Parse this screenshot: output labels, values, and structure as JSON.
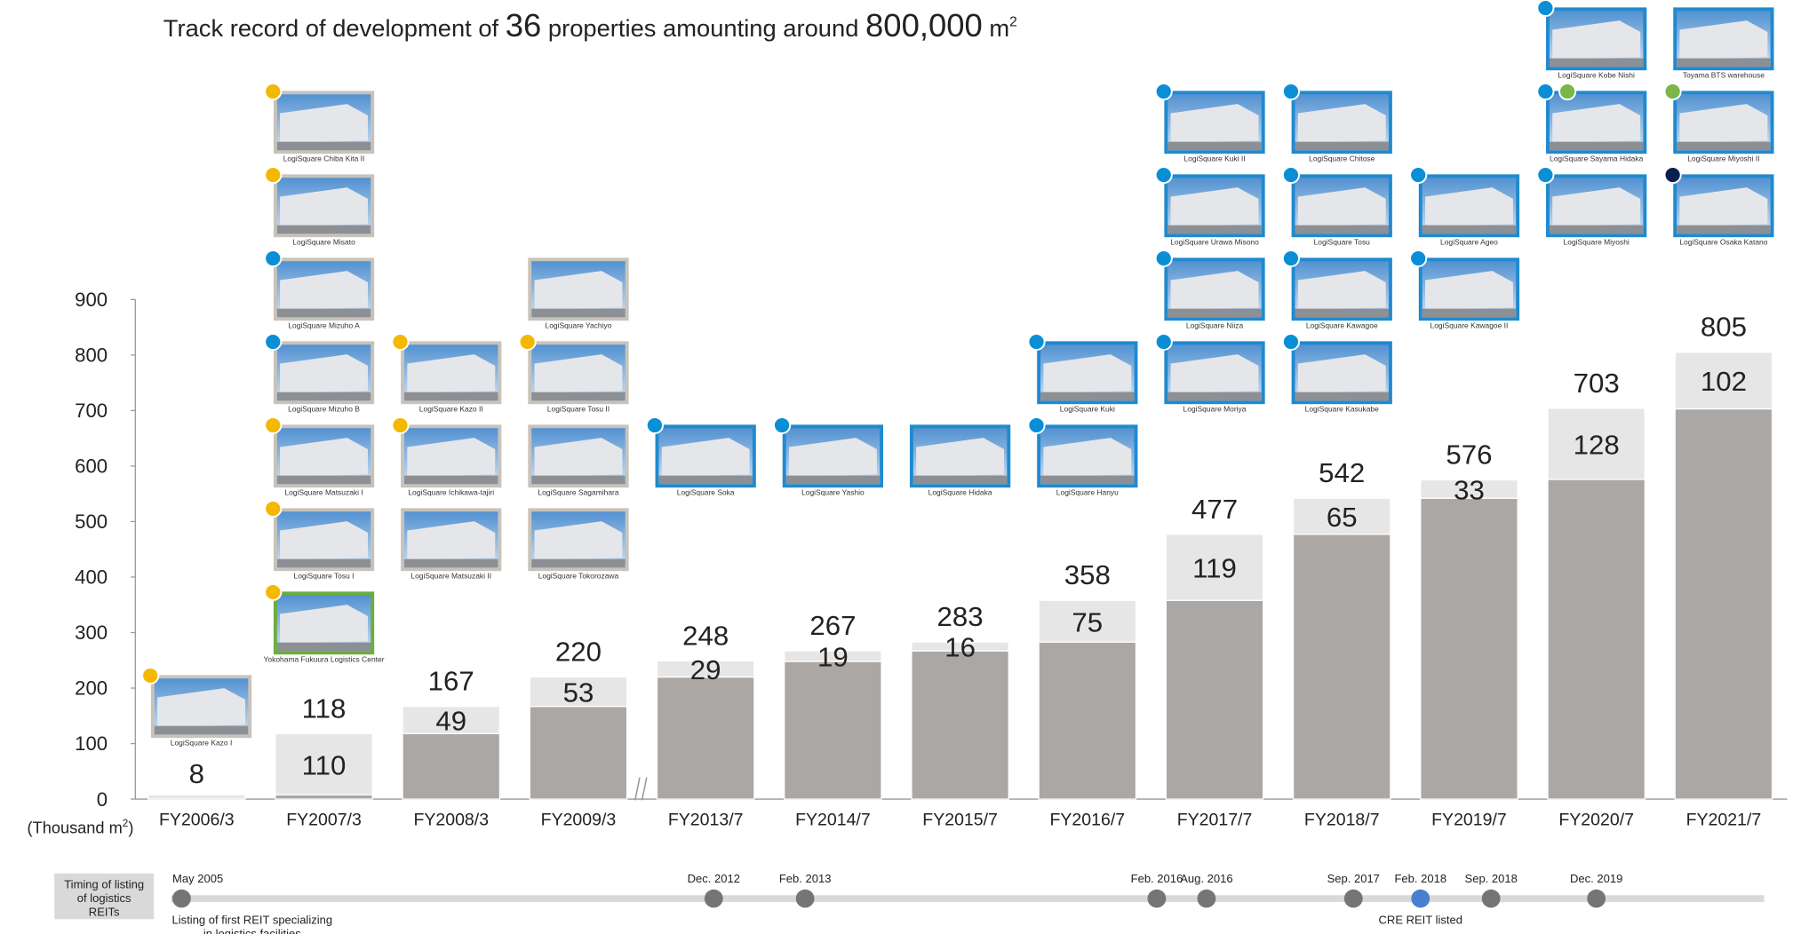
{
  "chart_data": {
    "type": "bar",
    "stacked": true,
    "title_parts": [
      "Track record of development of ",
      "36",
      " properties amounting around ",
      "800,000",
      " m",
      "2"
    ],
    "y_label_parts": [
      "(Thousand m",
      "2",
      ")"
    ],
    "categories": [
      "FY2006/3",
      "FY2007/3",
      "FY2008/3",
      "FY2009/3",
      "FY2013/7",
      "FY2014/7",
      "FY2015/7",
      "FY2016/7",
      "FY2017/7",
      "FY2018/7",
      "FY2019/7",
      "FY2020/7",
      "FY2021/7"
    ],
    "series": [
      {
        "color": "#aaa7a5",
        "values": [
          0,
          8,
          118,
          167,
          220,
          248,
          267,
          283,
          358,
          477,
          542,
          576,
          703
        ]
      },
      {
        "color": "#e6e6e6",
        "values": [
          8,
          110,
          49,
          53,
          29,
          19,
          16,
          75,
          119,
          65,
          33,
          128,
          102
        ]
      }
    ],
    "totals": [
      null,
      118,
      167,
      220,
      248,
      267,
      283,
      358,
      477,
      542,
      576,
      703,
      805
    ],
    "ylim": [
      0,
      900
    ],
    "yticks": [
      0,
      100,
      200,
      300,
      400,
      500,
      600,
      700,
      800,
      900
    ]
  },
  "properties": [
    {
      "items": [
        {
          "label": "LogiSquare Kazo I",
          "dots": [
            "#f5b800"
          ]
        }
      ]
    },
    {
      "items": [
        {
          "label": "LogiSquare Chiba Kita II",
          "dots": [
            "#f5b800"
          ]
        },
        {
          "label": "LogiSquare Misato",
          "dots": [
            "#f5b800"
          ]
        },
        {
          "label": "LogiSquare Mizuho A",
          "dots": [
            "#0a8fd6"
          ]
        },
        {
          "label": "LogiSquare Mizuho B",
          "dots": [
            "#0a8fd6"
          ]
        },
        {
          "label": "LogiSquare Matsuzaki I",
          "dots": [
            "#f5b800"
          ]
        },
        {
          "label": "LogiSquare Tosu I",
          "dots": [
            "#f5b800"
          ]
        },
        {
          "label": "Yokohama Fukuura Logistics Center",
          "dots": [
            "#f5b800"
          ],
          "frame": "#6aae3c"
        }
      ]
    },
    {
      "items": [
        {
          "label": "LogiSquare Kazo II",
          "dots": [
            "#f5b800"
          ]
        },
        {
          "label": "LogiSquare Ichikawa-tajiri",
          "dots": [
            "#f5b800"
          ]
        },
        {
          "label": "LogiSquare Matsuzaki II",
          "dots": []
        }
      ]
    },
    {
      "items": [
        {
          "label": "LogiSquare Yachiyo",
          "dots": []
        },
        {
          "label": "LogiSquare Tosu II",
          "dots": [
            "#f5b800"
          ]
        },
        {
          "label": "LogiSquare Sagamihara",
          "dots": []
        },
        {
          "label": "LogiSquare Tokorozawa",
          "dots": []
        }
      ]
    },
    {
      "items": [
        {
          "label": "LogiSquare Soka",
          "dots": [
            "#0a8fd6"
          ]
        }
      ]
    },
    {
      "items": [
        {
          "label": "LogiSquare Yashio",
          "dots": [
            "#0a8fd6"
          ]
        }
      ]
    },
    {
      "items": [
        {
          "label": "LogiSquare Hidaka",
          "dots": []
        }
      ]
    },
    {
      "items": [
        {
          "label": "LogiSquare Kuki",
          "dots": [
            "#0a8fd6"
          ]
        },
        {
          "label": "LogiSquare Hanyu",
          "dots": [
            "#0a8fd6"
          ]
        }
      ]
    },
    {
      "items": [
        {
          "label": "LogiSquare Kuki II",
          "dots": [
            "#0a8fd6"
          ]
        },
        {
          "label": "LogiSquare Urawa Misono",
          "dots": [
            "#0a8fd6"
          ]
        },
        {
          "label": "LogiSquare Niiza",
          "dots": [
            "#0a8fd6"
          ]
        },
        {
          "label": "LogiSquare Moriya",
          "dots": [
            "#0a8fd6"
          ]
        }
      ]
    },
    {
      "items": [
        {
          "label": "LogiSquare Chitose",
          "dots": [
            "#0a8fd6"
          ]
        },
        {
          "label": "LogiSquare Tosu",
          "dots": [
            "#0a8fd6"
          ]
        },
        {
          "label": "LogiSquare Kawagoe",
          "dots": [
            "#0a8fd6"
          ]
        },
        {
          "label": "LogiSquare Kasukabe",
          "dots": [
            "#0a8fd6"
          ]
        }
      ]
    },
    {
      "items": [
        {
          "label": "LogiSquare Ageo",
          "dots": [
            "#0a8fd6"
          ]
        },
        {
          "label": "LogiSquare Kawagoe II",
          "dots": [
            "#0a8fd6"
          ]
        }
      ]
    },
    {
      "items": [
        {
          "label": "LogiSquare Kobe Nishi",
          "dots": [
            "#0a8fd6"
          ]
        },
        {
          "label": "LogiSquare Sayama Hidaka",
          "dots": [
            "#0a8fd6",
            "#7ab648"
          ]
        },
        {
          "label": "LogiSquare Miyoshi",
          "dots": [
            "#0a8fd6"
          ]
        }
      ]
    },
    {
      "items": [
        {
          "label": "Toyama BTS warehouse",
          "dots": []
        },
        {
          "label": "LogiSquare Miyoshi II",
          "dots": [
            "#7ab648"
          ]
        },
        {
          "label": "LogiSquare Osaka Katano",
          "dots": [
            "#0b1f4f"
          ]
        }
      ]
    }
  ],
  "timeline": {
    "title_lines": [
      "Timing of listing",
      "of logistics",
      "REITs"
    ],
    "events": [
      {
        "date": "May 2005",
        "note": [
          "Listing of first REIT specializing",
          "in logistics facilities"
        ]
      },
      {
        "date": "Dec. 2012"
      },
      {
        "date": "Feb. 2013"
      },
      {
        "date": "Feb. 2016"
      },
      {
        "date": "Aug. 2016"
      },
      {
        "date": "Sep. 2017"
      },
      {
        "date": "Feb. 2018",
        "note": [
          "CRE REIT listed"
        ],
        "color": "#4a7fd0"
      },
      {
        "date": "Sep. 2018"
      },
      {
        "date": "Dec. 2019"
      }
    ]
  }
}
